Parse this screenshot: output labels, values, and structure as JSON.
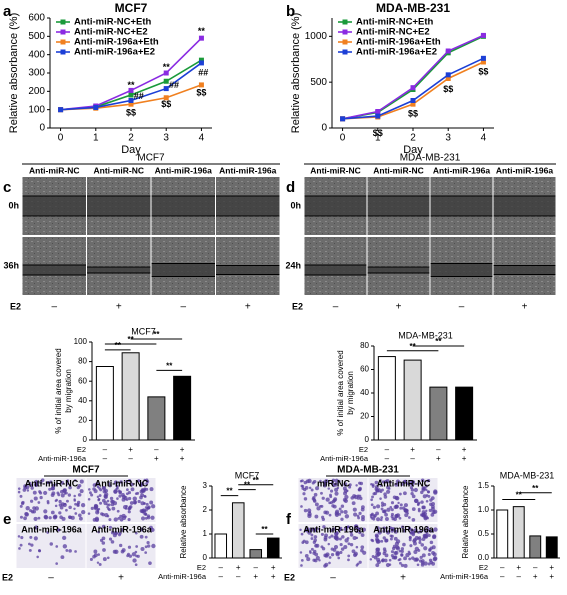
{
  "panel_labels": [
    "a",
    "b",
    "c",
    "d",
    "e",
    "f"
  ],
  "chart_data": [
    {
      "type": "line",
      "title": "MCF7",
      "y_label": "Relative absorbance (%)",
      "x_label": "Day",
      "x": [
        0,
        1,
        2,
        3,
        4
      ],
      "xlim": [
        -0.3,
        4.3
      ],
      "xticks": [
        0,
        1,
        2,
        3,
        4
      ],
      "ylim": [
        0,
        600
      ],
      "yticks": [
        0,
        100,
        200,
        300,
        400,
        500,
        600
      ],
      "series": [
        {
          "name": "Anti-miR-NC+Eth",
          "color": "#1a9a3a",
          "values": [
            100,
            115,
            180,
            255,
            370
          ]
        },
        {
          "name": "Anti-miR-NC+E2",
          "color": "#8a2be2",
          "values": [
            100,
            120,
            205,
            300,
            490
          ]
        },
        {
          "name": "Anti-miR-196a+Eth",
          "color": "#f08020",
          "values": [
            100,
            108,
            130,
            165,
            235
          ]
        },
        {
          "name": "Anti-miR-196a+E2",
          "color": "#1c3fd6",
          "values": [
            100,
            112,
            150,
            215,
            355
          ]
        }
      ],
      "annotations": [
        "**",
        "**",
        "**",
        "##",
        "##",
        "##",
        "$$",
        "$$",
        "$$"
      ]
    },
    {
      "type": "line",
      "title": "MDA-MB-231",
      "y_label": "Relative absorbance (%)",
      "x_label": "Day",
      "x": [
        0,
        1,
        2,
        3,
        4
      ],
      "xlim": [
        -0.3,
        4.3
      ],
      "xticks": [
        0,
        1,
        2,
        3,
        4
      ],
      "ylim": [
        0,
        1200
      ],
      "yticks": [
        0,
        500,
        1000
      ],
      "series": [
        {
          "name": "Anti-miR-NC+Eth",
          "color": "#1a9a3a",
          "values": [
            100,
            170,
            420,
            820,
            1000
          ]
        },
        {
          "name": "Anti-miR-NC+E2",
          "color": "#8a2be2",
          "values": [
            100,
            180,
            440,
            840,
            1010
          ]
        },
        {
          "name": "Anti-miR-196a+Eth",
          "color": "#f08020",
          "values": [
            100,
            120,
            260,
            540,
            720
          ]
        },
        {
          "name": "Anti-miR-196a+E2",
          "color": "#1c3fd6",
          "values": [
            100,
            130,
            300,
            580,
            760
          ]
        }
      ],
      "annotations": [
        "$$",
        "$$",
        "$$",
        "$$"
      ]
    },
    {
      "type": "bar",
      "title": "MCF7",
      "y_label": [
        "% of initial area covered",
        "by migration"
      ],
      "values": [
        75,
        89,
        44,
        65
      ],
      "colors": [
        "#ffffff",
        "#d9d9d9",
        "#808080",
        "#000000"
      ],
      "ylim": [
        0,
        100
      ],
      "yticks": [
        0,
        20,
        40,
        60,
        80,
        100
      ],
      "conditions": [
        {
          "name": "E2",
          "marks": [
            "–",
            "+",
            "–",
            "+"
          ]
        },
        {
          "name": "Anti-miR-196a",
          "marks": [
            "–",
            "–",
            "+",
            "+"
          ]
        }
      ],
      "significance": [
        "**",
        "**",
        "**",
        "**"
      ]
    },
    {
      "type": "bar",
      "title": "MDA-MB-231",
      "y_label": [
        "% of initial area covered",
        "by migration"
      ],
      "values": [
        71,
        68,
        45,
        45
      ],
      "colors": [
        "#ffffff",
        "#d9d9d9",
        "#808080",
        "#000000"
      ],
      "ylim": [
        0,
        80
      ],
      "yticks": [
        0,
        20,
        40,
        60,
        80
      ],
      "conditions": [
        {
          "name": "E2",
          "marks": [
            "–",
            "+",
            "–",
            "+"
          ]
        },
        {
          "name": "Anti-miR-196a",
          "marks": [
            "–",
            "–",
            "+",
            "+"
          ]
        }
      ],
      "significance": [
        "**",
        "**"
      ]
    },
    {
      "type": "bar",
      "title": "MCF7",
      "y_label": [
        "Relative absorbance"
      ],
      "values": [
        1.0,
        2.3,
        0.35,
        0.83
      ],
      "colors": [
        "#ffffff",
        "#d9d9d9",
        "#808080",
        "#000000"
      ],
      "ylim": [
        0,
        3
      ],
      "yticks": [
        0,
        1,
        2,
        3
      ],
      "conditions": [
        {
          "name": "E2",
          "marks": [
            "–",
            "+",
            "–",
            "+"
          ]
        },
        {
          "name": "Anti-miR-196a",
          "marks": [
            "–",
            "–",
            "+",
            "+"
          ]
        }
      ],
      "significance": [
        "**",
        "**",
        "**",
        "**"
      ]
    },
    {
      "type": "bar",
      "title": "MDA-MB-231",
      "y_label": [
        "Relative absorbance"
      ],
      "values": [
        1.0,
        1.07,
        0.46,
        0.44
      ],
      "colors": [
        "#ffffff",
        "#d9d9d9",
        "#808080",
        "#000000"
      ],
      "ylim": [
        0,
        1.5
      ],
      "yticks": [
        {
          "value": 0,
          "label": "0.0"
        },
        0.5,
        {
          "value": 1,
          "label": "1.0"
        },
        1.5
      ],
      "conditions": [
        {
          "name": "E2",
          "marks": [
            "–",
            "+",
            "–",
            "+"
          ]
        },
        {
          "name": "Anti-miR-196a",
          "marks": [
            "–",
            "–",
            "+",
            "+"
          ]
        }
      ],
      "significance": [
        "**",
        "**"
      ]
    }
  ],
  "micrographs": [
    {
      "title": "MCF7",
      "columns": [
        "Anti-miR-NC",
        "Anti-miR-NC",
        "Anti-miR-196a",
        "Anti-miR-196a"
      ],
      "rows": [
        "0h",
        "36h"
      ],
      "treatment": "E2",
      "treatment_marks": [
        "–",
        "+",
        "–",
        "+"
      ]
    },
    {
      "title": "MDA-MB-231",
      "columns": [
        "Anti-miR-NC",
        "Anti-miR-NC",
        "Anti-miR-196a",
        "Anti-miR-196a"
      ],
      "rows": [
        "0h",
        "24h"
      ],
      "treatment": "E2",
      "treatment_marks": [
        "–",
        "+",
        "–",
        "+"
      ]
    },
    {
      "title": "MCF7",
      "labels": [
        "Anti-miR-NC",
        "Anti-miR-NC",
        "Anti-miR-196a",
        "Anti-miR-196a"
      ],
      "treatment": "E2",
      "treatment_marks": [
        "–",
        "+"
      ]
    },
    {
      "title": "MDA-MB-231",
      "labels": [
        "miR-NC",
        "Anti-miR-NC",
        "Anti-miR-196a",
        "Anti-miR-196a"
      ],
      "treatment": "E2",
      "treatment_marks": [
        "–",
        "+"
      ]
    }
  ]
}
